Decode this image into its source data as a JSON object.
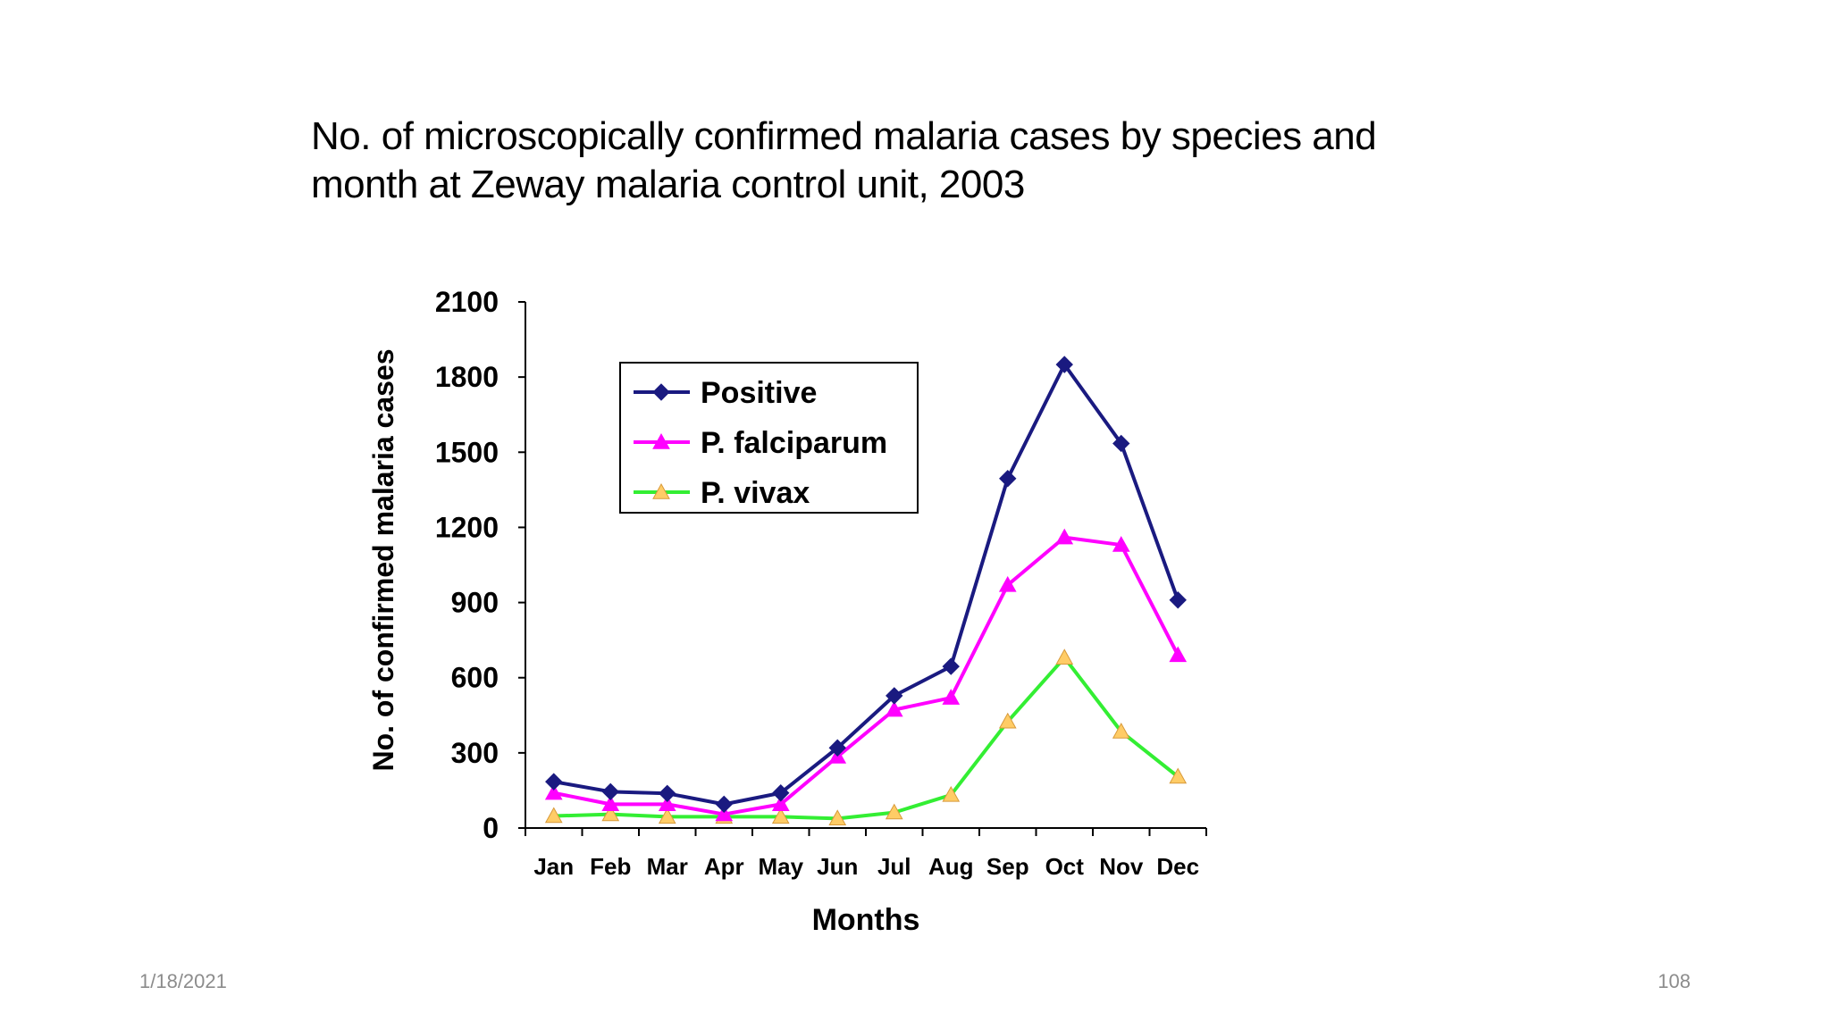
{
  "slide": {
    "title_line1": "No. of microscopically confirmed malaria cases by species and",
    "title_line2": "month at Zeway malaria control unit, 2003",
    "date": "1/18/2021",
    "page": "108"
  },
  "chart_data": {
    "type": "line",
    "title": "",
    "xlabel": "Months",
    "ylabel": "No. of confirmed malaria cases",
    "categories": [
      "Jan",
      "Feb",
      "Mar",
      "Apr",
      "May",
      "Jun",
      "Jul",
      "Aug",
      "Sep",
      "Oct",
      "Nov",
      "Dec"
    ],
    "ylim": [
      0,
      2100
    ],
    "yticks": [
      0,
      300,
      600,
      900,
      1200,
      1500,
      1800,
      2100
    ],
    "grid": false,
    "legend": "upper-left-inside",
    "series": [
      {
        "name": "Positive",
        "color": "#1a1a80",
        "marker": "diamond",
        "values": [
          185,
          145,
          138,
          95,
          140,
          320,
          528,
          645,
          1395,
          1850,
          1535,
          910
        ]
      },
      {
        "name": "P. falciparum",
        "color": "#ff00ff",
        "marker": "triangle",
        "values": [
          140,
          95,
          95,
          55,
          95,
          285,
          472,
          520,
          970,
          1160,
          1130,
          690
        ]
      },
      {
        "name": "P. vivax",
        "color": "#33ee33",
        "marker_color": "#ffcc66",
        "marker": "triangle",
        "values": [
          48,
          55,
          45,
          45,
          45,
          38,
          62,
          132,
          425,
          680,
          385,
          205
        ]
      }
    ]
  }
}
